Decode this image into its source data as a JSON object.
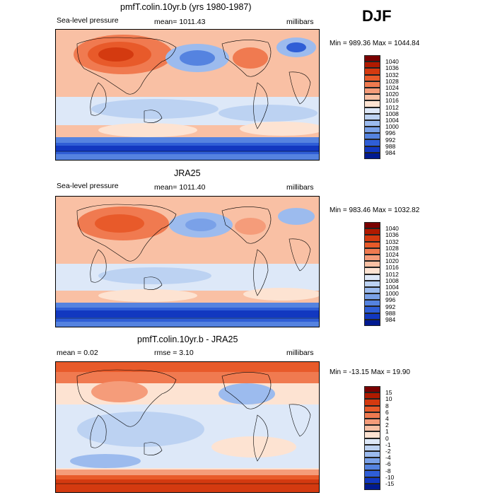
{
  "season": "DJF",
  "panels": [
    {
      "title": "pmfT.colin.10yr.b (yrs 1980-1987)",
      "left_label": "Sea-level pressure",
      "mid_label": "mean= 1011.43",
      "right_label": "millibars",
      "minmax": "Min = 989.36 Max = 1044.84",
      "colorbar": "pressure"
    },
    {
      "title": "JRA25",
      "left_label": "Sea-level pressure",
      "mid_label": "mean= 1011.40",
      "right_label": "millibars",
      "minmax": "Min = 983.46 Max = 1032.82",
      "colorbar": "pressure"
    },
    {
      "title": "pmfT.colin.10yr.b - JRA25",
      "left_label": "mean =    0.02",
      "mid_label": "rmse =    3.10",
      "right_label": "millibars",
      "minmax": "Min = -13.15 Max =   19.90",
      "colorbar": "diff"
    }
  ],
  "chart_data": [
    {
      "type": "heatmap",
      "title": "pmfT.colin.10yr.b (yrs 1980-1987)",
      "variable": "Sea-level pressure",
      "units": "millibars",
      "mean": 1011.43,
      "min": 989.36,
      "max": 1044.84,
      "colorbar_levels": [
        984,
        988,
        992,
        996,
        1000,
        1004,
        1008,
        1012,
        1016,
        1020,
        1024,
        1028,
        1032,
        1036,
        1040
      ]
    },
    {
      "type": "heatmap",
      "title": "JRA25",
      "variable": "Sea-level pressure",
      "units": "millibars",
      "mean": 1011.4,
      "min": 983.46,
      "max": 1032.82,
      "colorbar_levels": [
        984,
        988,
        992,
        996,
        1000,
        1004,
        1008,
        1012,
        1016,
        1020,
        1024,
        1028,
        1032,
        1036,
        1040
      ]
    },
    {
      "type": "heatmap",
      "title": "pmfT.colin.10yr.b - JRA25",
      "units": "millibars",
      "mean": 0.02,
      "rmse": 3.1,
      "min": -13.15,
      "max": 19.9,
      "colorbar_levels": [
        -15,
        -10,
        -8,
        -6,
        -4,
        -2,
        -1,
        0,
        1,
        2,
        4,
        6,
        8,
        10,
        15
      ]
    }
  ],
  "colorbars": {
    "pressure": {
      "labels": [
        "1040",
        "1036",
        "1032",
        "1028",
        "1024",
        "1020",
        "1016",
        "1012",
        "1008",
        "1004",
        "1000",
        "996",
        "992",
        "988",
        "984"
      ],
      "colors": [
        "#7a0000",
        "#b01a00",
        "#d43a10",
        "#e85a2a",
        "#f07a50",
        "#f59c7a",
        "#f9c0a4",
        "#fde3d2",
        "#dde8f8",
        "#bcd2f2",
        "#9cbbee",
        "#7aa1e8",
        "#5583e0",
        "#2f5ed6",
        "#1238c0",
        "#001a90"
      ]
    },
    "diff": {
      "labels": [
        "15",
        "10",
        "8",
        "6",
        "4",
        "2",
        "1",
        "0",
        "-1",
        "-2",
        "-4",
        "-6",
        "-8",
        "-10",
        "-15"
      ],
      "colors": [
        "#7a0000",
        "#b01a00",
        "#d43a10",
        "#e85a2a",
        "#f07a50",
        "#f59c7a",
        "#f9c0a4",
        "#fde3d2",
        "#dde8f8",
        "#bcd2f2",
        "#9cbbee",
        "#7aa1e8",
        "#5583e0",
        "#2f5ed6",
        "#1238c0",
        "#001a90"
      ]
    }
  }
}
